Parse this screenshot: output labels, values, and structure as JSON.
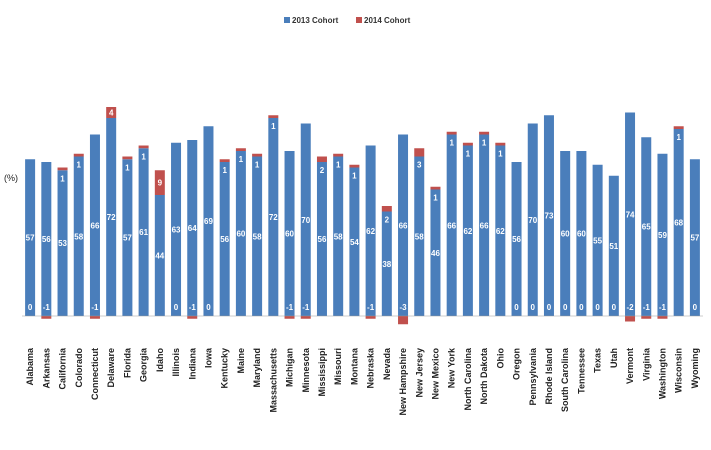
{
  "chart_data": {
    "type": "bar",
    "stacked": true,
    "ylabel": "(%)",
    "legend_position": "top",
    "grid": false,
    "categories": [
      "Alabama",
      "Arkansas",
      "California",
      "Colorado",
      "Connecticut",
      "Delaware",
      "Florida",
      "Georgia",
      "Idaho",
      "Illinois",
      "Indiana",
      "Iowa",
      "Kentucky",
      "Maine",
      "Maryland",
      "Massachusetts",
      "Michigan",
      "Minnesota",
      "Mississippi",
      "Missouri",
      "Montana",
      "Nebraska",
      "Nevada",
      "New Hampshire",
      "New Jersey",
      "New Mexico",
      "New York",
      "North Carolina",
      "North Dakota",
      "Ohio",
      "Oregon",
      "Pennsylvania",
      "Rhode Island",
      "South Carolina",
      "Tennessee",
      "Texas",
      "Utah",
      "Vermont",
      "Virginia",
      "Washington",
      "Wisconsin",
      "Wyoming"
    ],
    "series": [
      {
        "name": "2013 Cohort",
        "color": "#4a7ebb",
        "values": [
          57,
          56,
          53,
          58,
          66,
          72,
          57,
          61,
          44,
          63,
          64,
          69,
          56,
          60,
          58,
          72,
          60,
          70,
          56,
          58,
          54,
          62,
          38,
          66,
          58,
          46,
          66,
          62,
          66,
          62,
          56,
          70,
          73,
          60,
          60,
          55,
          51,
          74,
          65,
          59,
          68,
          57
        ]
      },
      {
        "name": "2014 Cohort",
        "color": "#c0504d",
        "values": [
          0,
          -1,
          1,
          1,
          -1,
          4,
          1,
          1,
          9,
          0,
          -1,
          0,
          1,
          1,
          1,
          1,
          -1,
          -1,
          2,
          1,
          1,
          -1,
          2,
          -3,
          3,
          1,
          1,
          1,
          1,
          1,
          0,
          0,
          0,
          0,
          0,
          0,
          0,
          -2,
          -1,
          -1,
          1,
          0
        ]
      }
    ],
    "ylim": [
      -10,
      77
    ]
  }
}
